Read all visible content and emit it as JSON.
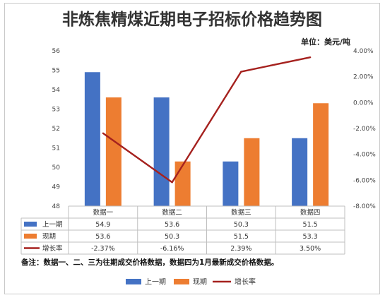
{
  "chart_data": {
    "type": "bar",
    "title": "非炼焦精煤近期电子招标价格趋势图",
    "unit_label": "单位：美元/吨",
    "categories": [
      "数据一",
      "数据二",
      "数据三",
      "数据四"
    ],
    "series": [
      {
        "name": "上一期",
        "type": "bar",
        "axis": "left",
        "color": "#4472C4",
        "values": [
          54.9,
          53.6,
          50.3,
          51.5
        ],
        "labels": [
          "54.9",
          "53.6",
          "50.3",
          "51.5"
        ]
      },
      {
        "name": "现期",
        "type": "bar",
        "axis": "left",
        "color": "#ED7D31",
        "values": [
          53.6,
          50.3,
          51.5,
          53.3
        ],
        "labels": [
          "53.6",
          "50.3",
          "51.5",
          "53.3"
        ]
      },
      {
        "name": "增长率",
        "type": "line",
        "axis": "right",
        "color": "#A5211E",
        "values": [
          -2.37,
          -6.16,
          2.39,
          3.5
        ],
        "labels": [
          "-2.37%",
          "-6.16%",
          "2.39%",
          "3.50%"
        ]
      }
    ],
    "y_left": {
      "min": 48,
      "max": 56,
      "ticks": [
        "48",
        "49",
        "50",
        "51",
        "52",
        "53",
        "54",
        "55",
        "56"
      ]
    },
    "y_right": {
      "min": -8,
      "max": 4,
      "ticks": [
        "-8.00%",
        "-6.00%",
        "-4.00%",
        "-2.00%",
        "0.00%",
        "2.00%",
        "4.00%"
      ]
    },
    "grid": false,
    "legend_position": "bottom",
    "data_table": true
  },
  "note": "备注：数据一、二、三为往期成交价格数据，数据四为1月最新成交价格数据。"
}
